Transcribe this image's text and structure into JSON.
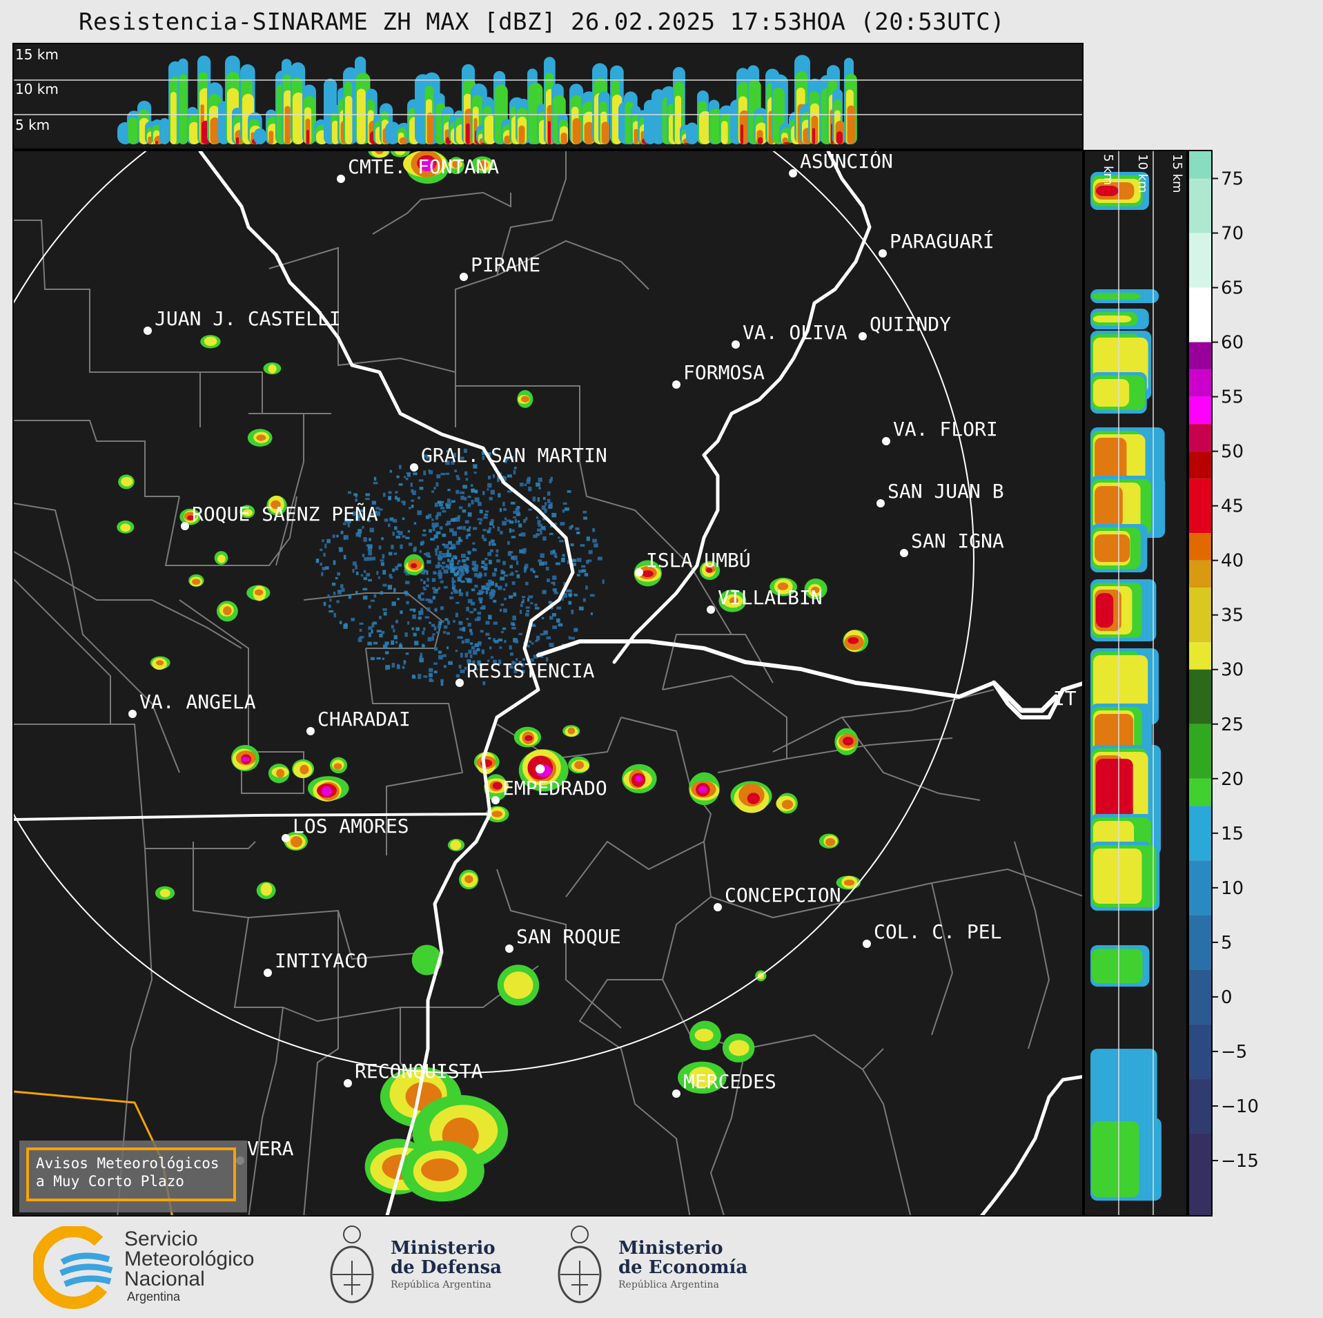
{
  "title": "Resistencia-SINARAME ZH MAX [dBZ] 26.02.2025 17:53HOA (20:53UTC)",
  "top_panel": {
    "height_labels": [
      "15 km",
      "10 km",
      "5 km"
    ]
  },
  "side_panel": {
    "height_labels": [
      "5 km",
      "10 km",
      "15 km"
    ]
  },
  "colorbar": {
    "unit": "dBZ",
    "ticks": [
      "75",
      "70",
      "65",
      "60",
      "55",
      "50",
      "45",
      "40",
      "35",
      "30",
      "25",
      "20",
      "15",
      "10",
      "5",
      "0",
      "−5",
      "−10",
      "−15"
    ],
    "colors": [
      "#88dcc0",
      "#aee8d0",
      "#d4f5e8",
      "#ffffff",
      "#990099",
      "#cc00cc",
      "#ff00ff",
      "#c8004e",
      "#b80000",
      "#e0001a",
      "#e06a00",
      "#d89a10",
      "#d8c820",
      "#e8e830",
      "#2a6a1a",
      "#30a820",
      "#40d030",
      "#2aa8d8",
      "#2a8ac0",
      "#2a70a8",
      "#2a5a90",
      "#2a4a80",
      "#303c70",
      "#363060"
    ]
  },
  "cities": [
    {
      "name": "CMTE. FONTANA"
    },
    {
      "name": "ASUNCIÓN"
    },
    {
      "name": "PARAGUARÍ"
    },
    {
      "name": "PIRANE"
    },
    {
      "name": "JUAN J. CASTELLI"
    },
    {
      "name": "VA. OLIVA"
    },
    {
      "name": "QUIINDY"
    },
    {
      "name": "FORMOSA"
    },
    {
      "name": "VA. FLORI"
    },
    {
      "name": "GRAL. SAN MARTIN"
    },
    {
      "name": "SAN JUAN B"
    },
    {
      "name": "ROQUE SAENZ PEÑA"
    },
    {
      "name": "SAN IGNA"
    },
    {
      "name": "ISLA UMBÚ"
    },
    {
      "name": "VILLALBIN"
    },
    {
      "name": "RESISTENCIA"
    },
    {
      "name": "VA. ANGELA"
    },
    {
      "name": "CHARADAI"
    },
    {
      "name": "IT"
    },
    {
      "name": "EMPEDRADO"
    },
    {
      "name": "LOS AMORES"
    },
    {
      "name": "CONCEPCION"
    },
    {
      "name": "SAN ROQUE"
    },
    {
      "name": "COL. C. PEL"
    },
    {
      "name": "INTIYACO"
    },
    {
      "name": "RECONQUISTA"
    },
    {
      "name": "MERCEDES"
    },
    {
      "name": "VERA"
    }
  ],
  "warning_box": {
    "line1": "Avisos Meteorológicos",
    "line2": "a Muy Corto Plazo"
  },
  "logos": {
    "smn": {
      "line1": "Servicio",
      "line2": "Meteorológico",
      "line3": "Nacional",
      "line4": "Argentina"
    },
    "defensa": {
      "line1": "Ministerio",
      "line2": "de Defensa",
      "line3": "República Argentina"
    },
    "economia": {
      "line1": "Ministerio",
      "line2": "de Economía",
      "line3": "República Argentina"
    }
  }
}
